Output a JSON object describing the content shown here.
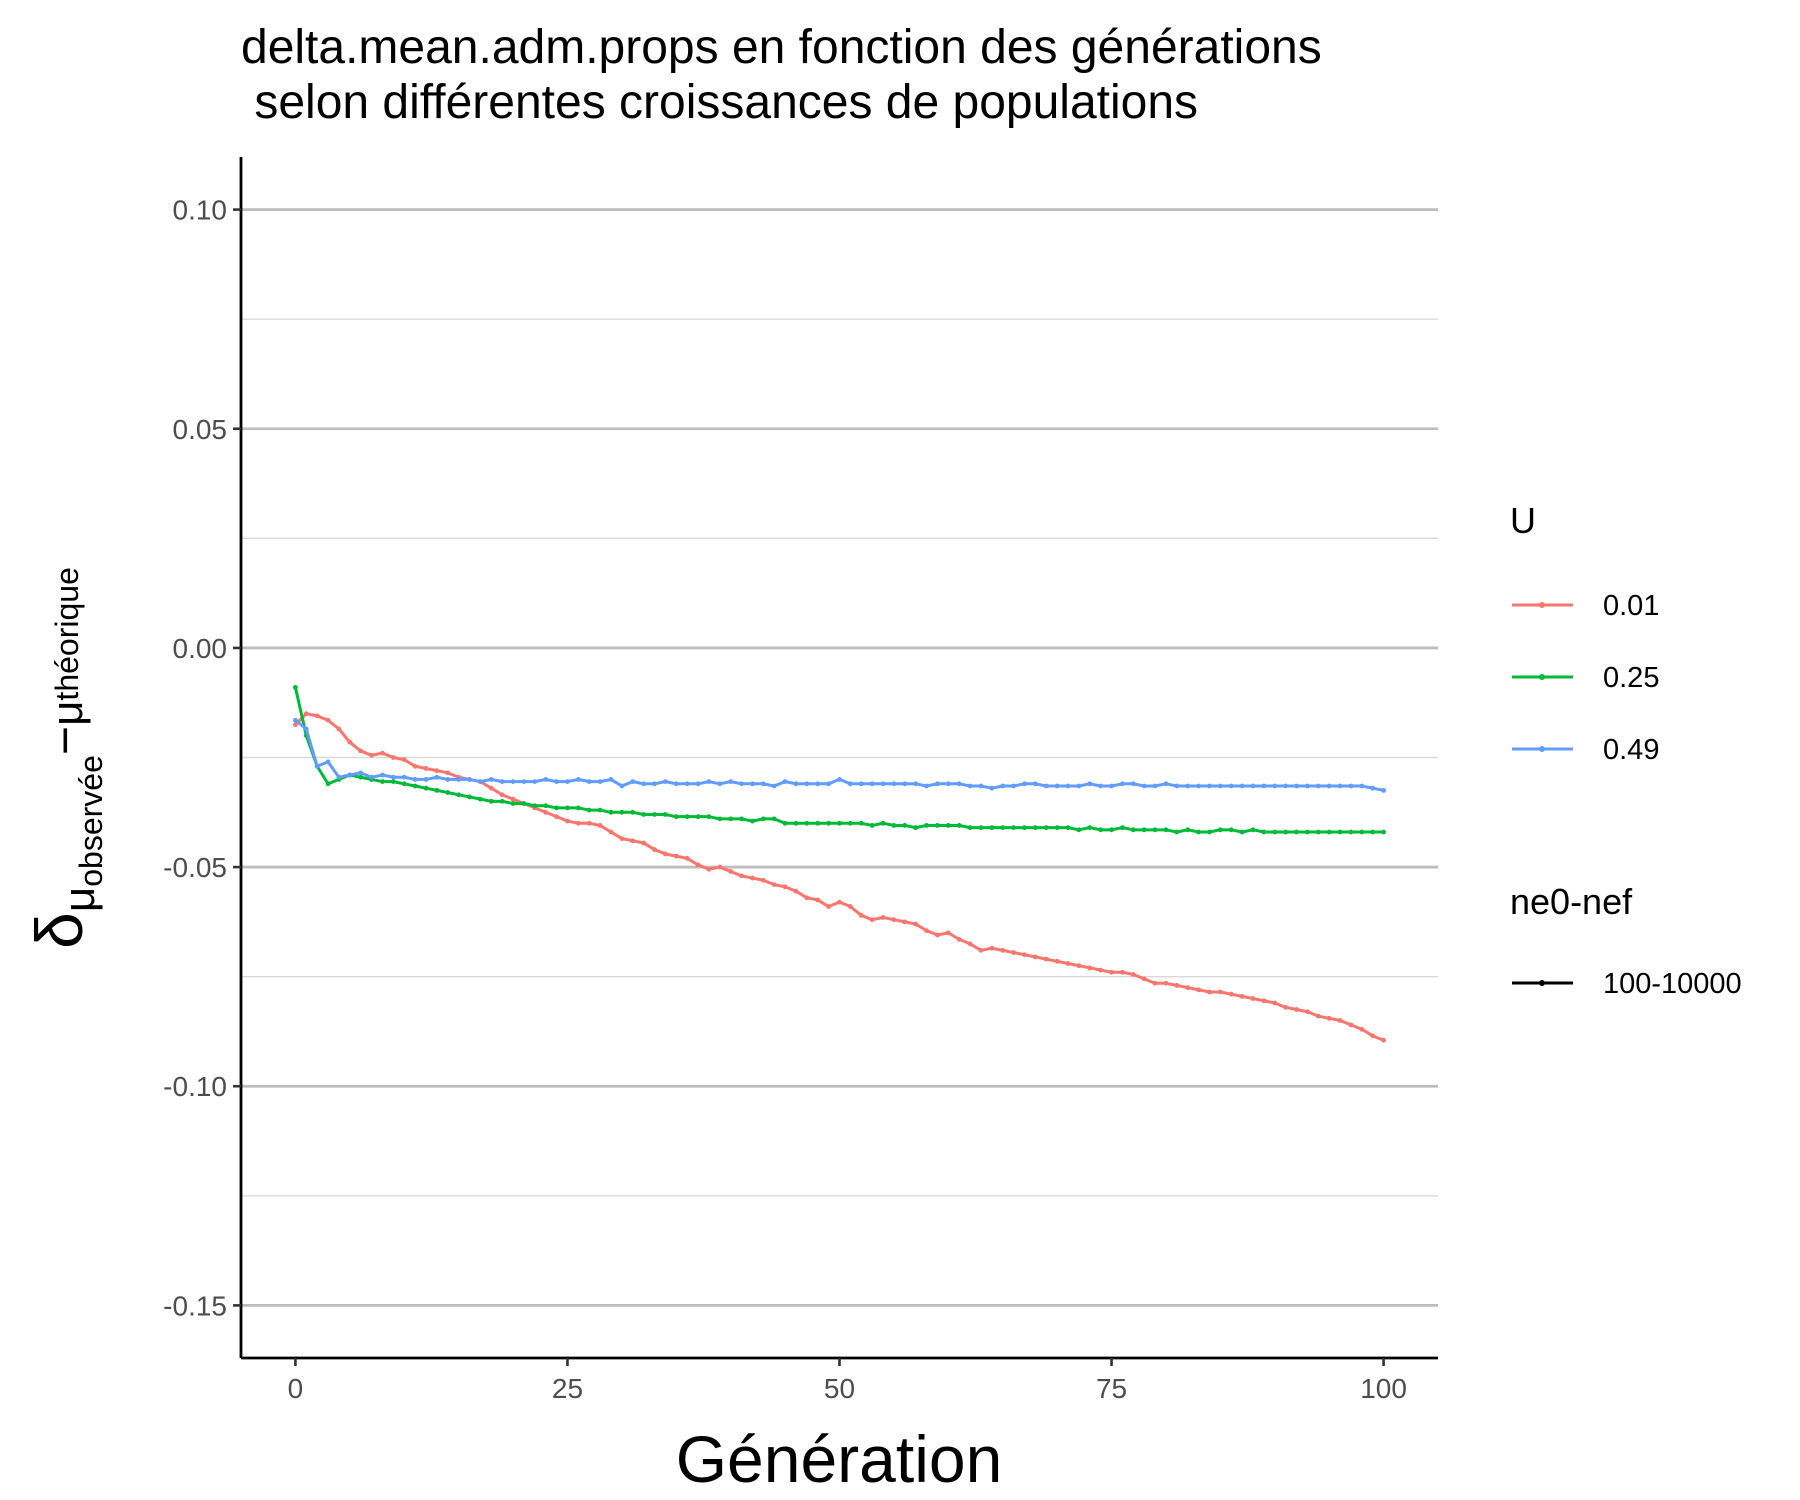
{
  "chart_data": {
    "type": "line",
    "title_lines": [
      "delta.mean.adm.props en fonction des générations",
      " selon différentes croissances de populations"
    ],
    "xlabel": "Génération",
    "ylabel_symbol": "δ",
    "ylabel_sub_1": "μ",
    "ylabel_sub_2": "observée",
    "ylabel_minus": "−",
    "ylabel_sub_3": "μ",
    "ylabel_sub_4": "théorique",
    "xlim": [
      -5,
      105
    ],
    "ylim": [
      -0.162,
      0.112
    ],
    "x_ticks": [
      0,
      25,
      50,
      75,
      100
    ],
    "x_tick_labels": [
      "0",
      "25",
      "50",
      "75",
      "100"
    ],
    "y_ticks": [
      0.1,
      0.05,
      0.0,
      -0.05,
      -0.1,
      -0.15
    ],
    "y_tick_labels": [
      "0.10",
      "0.05",
      "0.00",
      "-0.05",
      "-0.10",
      "-0.15"
    ],
    "y_minor_ticks": [
      0.075,
      0.025,
      -0.025,
      -0.075,
      -0.125
    ],
    "grid": "horizontal",
    "legend_position": "right",
    "legend": {
      "color_title": "U",
      "linetype_title": "ne0-nef",
      "linetype_entries": [
        "100-10000"
      ]
    },
    "x_start": 0,
    "x_step": 1,
    "series": [
      {
        "name": "0.01",
        "color": "#F8766D",
        "values": [
          -0.0175,
          -0.015,
          -0.0155,
          -0.0165,
          -0.0185,
          -0.0215,
          -0.0235,
          -0.0245,
          -0.024,
          -0.025,
          -0.0255,
          -0.027,
          -0.0275,
          -0.028,
          -0.0285,
          -0.0295,
          -0.03,
          -0.0305,
          -0.032,
          -0.0335,
          -0.0345,
          -0.0355,
          -0.0365,
          -0.0375,
          -0.0385,
          -0.0395,
          -0.04,
          -0.04,
          -0.0405,
          -0.042,
          -0.0435,
          -0.044,
          -0.0445,
          -0.046,
          -0.047,
          -0.0475,
          -0.048,
          -0.0495,
          -0.0505,
          -0.05,
          -0.051,
          -0.052,
          -0.0525,
          -0.053,
          -0.054,
          -0.0545,
          -0.0555,
          -0.057,
          -0.0575,
          -0.059,
          -0.058,
          -0.059,
          -0.061,
          -0.062,
          -0.0615,
          -0.062,
          -0.0625,
          -0.063,
          -0.0645,
          -0.0655,
          -0.065,
          -0.0665,
          -0.0675,
          -0.069,
          -0.0685,
          -0.069,
          -0.0695,
          -0.07,
          -0.0705,
          -0.071,
          -0.0715,
          -0.072,
          -0.0725,
          -0.073,
          -0.0735,
          -0.074,
          -0.074,
          -0.0745,
          -0.0755,
          -0.0765,
          -0.0765,
          -0.077,
          -0.0775,
          -0.078,
          -0.0785,
          -0.0785,
          -0.079,
          -0.0795,
          -0.08,
          -0.0805,
          -0.081,
          -0.082,
          -0.0825,
          -0.083,
          -0.084,
          -0.0845,
          -0.085,
          -0.086,
          -0.087,
          -0.0885,
          -0.0895
        ]
      },
      {
        "name": "0.25",
        "color": "#00BA38",
        "values": [
          -0.009,
          -0.02,
          -0.027,
          -0.031,
          -0.03,
          -0.029,
          -0.0295,
          -0.03,
          -0.0305,
          -0.0305,
          -0.031,
          -0.0315,
          -0.032,
          -0.0325,
          -0.033,
          -0.0335,
          -0.034,
          -0.0345,
          -0.035,
          -0.035,
          -0.0355,
          -0.0355,
          -0.036,
          -0.036,
          -0.0365,
          -0.0365,
          -0.0365,
          -0.037,
          -0.037,
          -0.0375,
          -0.0375,
          -0.0375,
          -0.038,
          -0.038,
          -0.038,
          -0.0385,
          -0.0385,
          -0.0385,
          -0.0385,
          -0.039,
          -0.039,
          -0.039,
          -0.0395,
          -0.039,
          -0.039,
          -0.04,
          -0.04,
          -0.04,
          -0.04,
          -0.04,
          -0.04,
          -0.04,
          -0.04,
          -0.0405,
          -0.04,
          -0.0405,
          -0.0405,
          -0.041,
          -0.0405,
          -0.0405,
          -0.0405,
          -0.0405,
          -0.041,
          -0.041,
          -0.041,
          -0.041,
          -0.041,
          -0.041,
          -0.041,
          -0.041,
          -0.041,
          -0.041,
          -0.0415,
          -0.041,
          -0.0415,
          -0.0415,
          -0.041,
          -0.0415,
          -0.0415,
          -0.0415,
          -0.0415,
          -0.042,
          -0.0415,
          -0.042,
          -0.042,
          -0.0415,
          -0.0415,
          -0.042,
          -0.0415,
          -0.042,
          -0.042,
          -0.042,
          -0.042,
          -0.042,
          -0.042,
          -0.042,
          -0.042,
          -0.042,
          -0.042,
          -0.042,
          -0.042
        ]
      },
      {
        "name": "0.49",
        "color": "#619CFF",
        "values": [
          -0.0165,
          -0.0185,
          -0.027,
          -0.026,
          -0.0295,
          -0.029,
          -0.0285,
          -0.0295,
          -0.029,
          -0.0295,
          -0.0295,
          -0.03,
          -0.03,
          -0.0295,
          -0.03,
          -0.03,
          -0.03,
          -0.0305,
          -0.03,
          -0.0305,
          -0.0305,
          -0.0305,
          -0.0305,
          -0.03,
          -0.0305,
          -0.0305,
          -0.03,
          -0.0305,
          -0.0305,
          -0.03,
          -0.0315,
          -0.0305,
          -0.031,
          -0.031,
          -0.0305,
          -0.031,
          -0.031,
          -0.031,
          -0.0305,
          -0.031,
          -0.0305,
          -0.031,
          -0.031,
          -0.031,
          -0.0315,
          -0.0305,
          -0.031,
          -0.031,
          -0.031,
          -0.031,
          -0.03,
          -0.031,
          -0.031,
          -0.031,
          -0.031,
          -0.031,
          -0.031,
          -0.031,
          -0.0315,
          -0.031,
          -0.031,
          -0.031,
          -0.0315,
          -0.0315,
          -0.032,
          -0.0315,
          -0.0315,
          -0.031,
          -0.031,
          -0.0315,
          -0.0315,
          -0.0315,
          -0.0315,
          -0.031,
          -0.0315,
          -0.0315,
          -0.031,
          -0.031,
          -0.0315,
          -0.0315,
          -0.031,
          -0.0315,
          -0.0315,
          -0.0315,
          -0.0315,
          -0.0315,
          -0.0315,
          -0.0315,
          -0.0315,
          -0.0315,
          -0.0315,
          -0.0315,
          -0.0315,
          -0.0315,
          -0.0315,
          -0.0315,
          -0.0315,
          -0.0315,
          -0.0315,
          -0.032,
          -0.0325
        ]
      }
    ]
  }
}
